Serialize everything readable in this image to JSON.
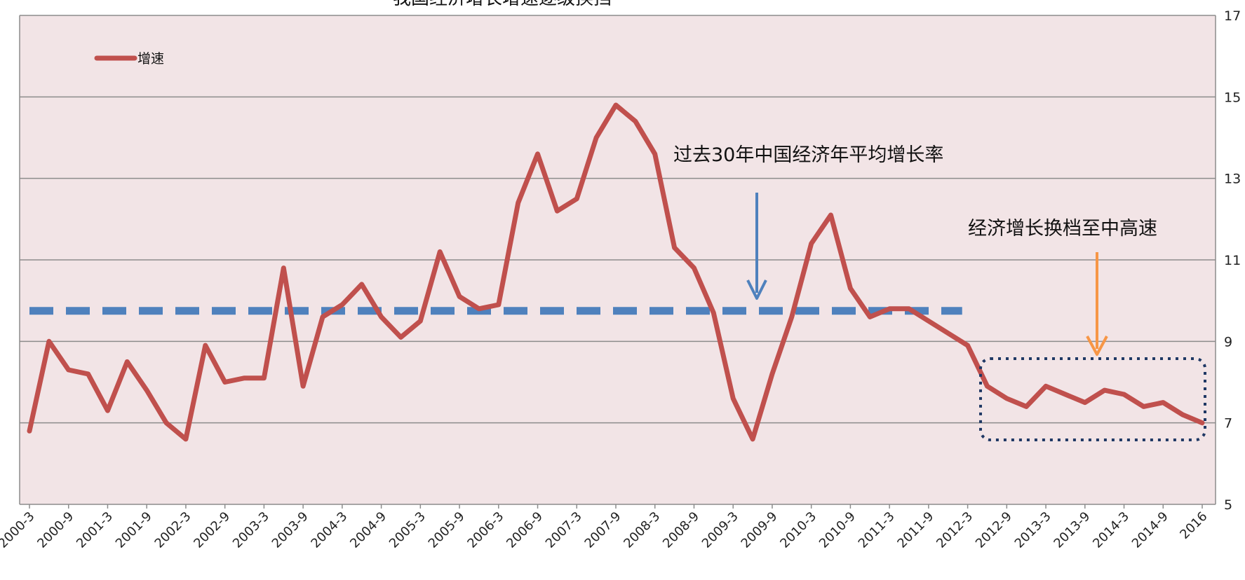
{
  "chart_data": {
    "type": "line",
    "title": "我国经济增长增速逐级换挡",
    "xlabel": "",
    "ylabel": "",
    "ylim": [
      5,
      17
    ],
    "yticks": [
      5,
      7,
      9,
      11,
      13,
      15,
      17
    ],
    "grid": true,
    "legend_placement": "top-left",
    "categories": [
      "2000-3",
      "2000-6",
      "2000-9",
      "2000-12",
      "2001-3",
      "2001-6",
      "2001-9",
      "2001-12",
      "2002-3",
      "2002-6",
      "2002-9",
      "2002-12",
      "2003-3",
      "2003-6",
      "2003-9",
      "2003-12",
      "2004-3",
      "2004-6",
      "2004-9",
      "2004-12",
      "2005-3",
      "2005-6",
      "2005-9",
      "2005-12",
      "2006-3",
      "2006-6",
      "2006-9",
      "2006-12",
      "2007-3",
      "2007-6",
      "2007-9",
      "2007-12",
      "2008-3",
      "2008-6",
      "2008-9",
      "2008-12",
      "2009-3",
      "2009-6",
      "2009-9",
      "2009-12",
      "2010-3",
      "2010-6",
      "2010-9",
      "2010-12",
      "2011-3",
      "2011-6",
      "2011-9",
      "2011-12",
      "2012-3",
      "2012-6",
      "2012-9",
      "2012-12",
      "2013-3",
      "2013-6",
      "2013-9",
      "2013-12",
      "2014-3",
      "2014-6",
      "2014-9",
      "2014-12",
      "2016"
    ],
    "xtick_labels": [
      "2000-3",
      "2000-9",
      "2001-3",
      "2001-9",
      "2002-3",
      "2002-9",
      "2003-3",
      "2003-9",
      "2004-3",
      "2004-9",
      "2005-3",
      "2005-9",
      "2006-3",
      "2006-9",
      "2007-3",
      "2007-9",
      "2008-3",
      "2008-9",
      "2009-3",
      "2009-9",
      "2010-3",
      "2010-9",
      "2011-3",
      "2011-9",
      "2012-3",
      "2012-9",
      "2013-3",
      "2013-9",
      "2014-3",
      "2014-9",
      "2016"
    ],
    "series": [
      {
        "name": "增速",
        "color": "#c0504d",
        "values": [
          6.8,
          9.0,
          8.3,
          8.2,
          7.3,
          8.5,
          7.8,
          7.0,
          6.6,
          8.9,
          8.0,
          8.1,
          8.1,
          10.8,
          7.9,
          9.6,
          9.9,
          10.4,
          9.6,
          9.1,
          9.5,
          11.2,
          10.1,
          9.8,
          9.9,
          12.4,
          13.6,
          12.2,
          12.5,
          14.0,
          14.8,
          14.4,
          13.6,
          11.3,
          10.8,
          9.7,
          7.6,
          6.6,
          8.2,
          9.6,
          11.4,
          12.1,
          10.3,
          9.6,
          9.8,
          9.8,
          9.5,
          9.2,
          8.9,
          7.9,
          7.6,
          7.4,
          7.9,
          7.7,
          7.5,
          7.8,
          7.7,
          7.4,
          7.5,
          7.2,
          7.0
        ]
      }
    ],
    "reference_line": {
      "value": 9.75,
      "color": "#4f81bd",
      "style": "dashed"
    },
    "annotations": [
      {
        "text": "过去30年中国经济年平均增长率",
        "arrow_color": "#4f81bd"
      },
      {
        "text": "经济增长换档至中高速",
        "arrow_color": "#f79646"
      }
    ],
    "highlight_box_color": "#1f3864",
    "plot_background": "#f2e4e6"
  }
}
